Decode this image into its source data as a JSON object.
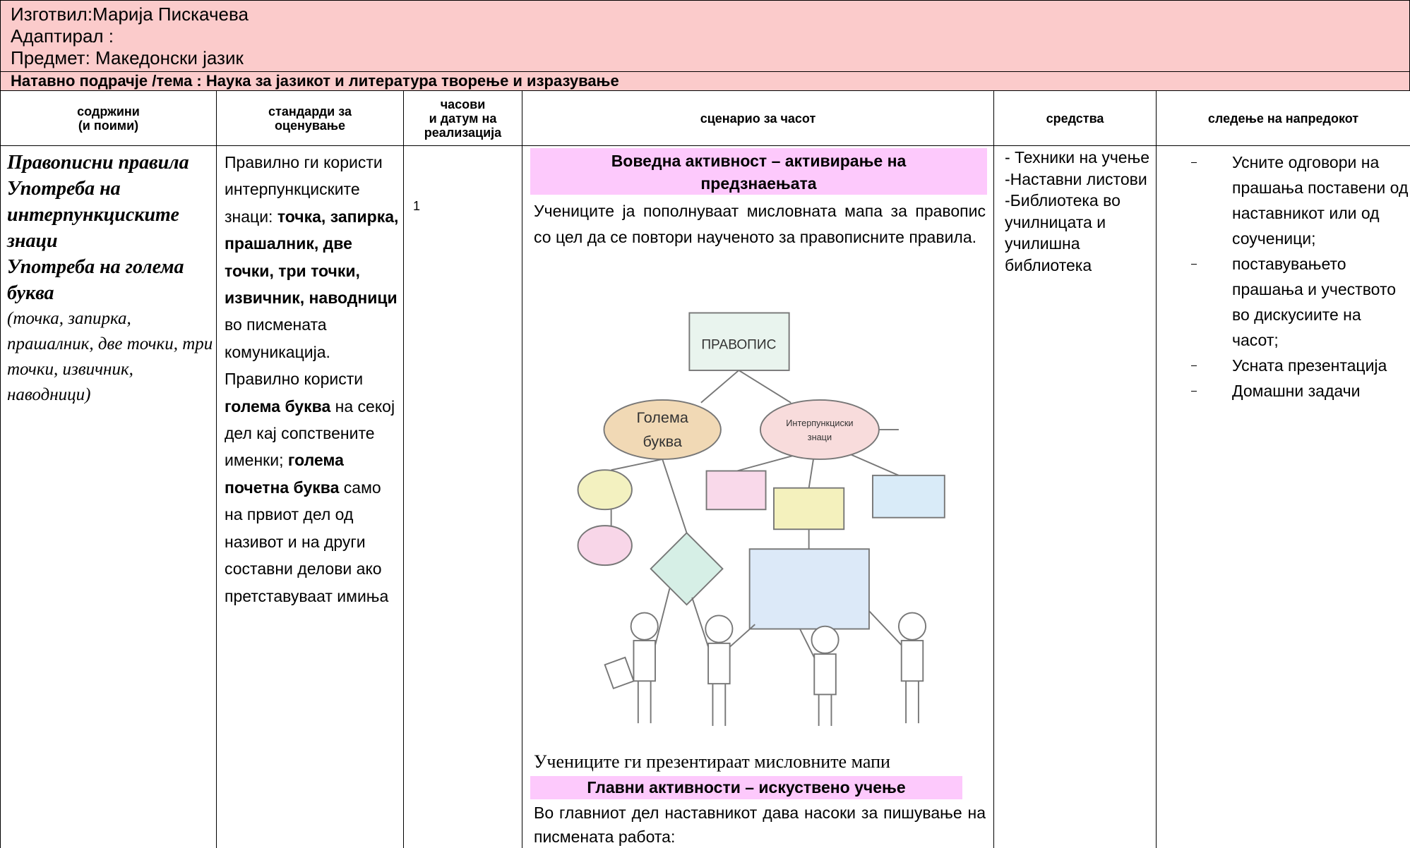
{
  "header": {
    "author": "Изготвил:Марија Пискачева",
    "adapted": "Адаптирал :",
    "subject": "Предмет: Македонски јазик",
    "topic": "Натавно подрачје /тема : Наука за јазикот и литература творење и изразување"
  },
  "table": {
    "columns": [
      [
        "содржини",
        "(и поими)"
      ],
      [
        "стандарди за",
        "оценување"
      ],
      [
        "часови",
        "и датум на",
        "реализација"
      ],
      [
        "сценарио за часот"
      ],
      [
        "средства"
      ],
      [
        "следење на напредокот"
      ]
    ],
    "contents": {
      "topics": [
        "Правописни правила",
        "Употреба на интерпункциските знаци",
        "Употреба на голема буква"
      ],
      "note": "(точка, запирка, прашалник, две точки, три точки, извичник, наводници)"
    },
    "standards": [
      {
        "text": "Правилно ги користи интерпункциските знаци: ",
        "bold": false
      },
      {
        "text": "точка, запирка, прашалник, две точки, три точки, извичник, наводници",
        "bold": true
      },
      {
        "text": " во писмената комуникација. Правилно користи ",
        "bold": false
      },
      {
        "text": "голема буква",
        "bold": true
      },
      {
        "text": " на секој дел кај сопствените именки; ",
        "bold": false
      },
      {
        "text": "голема почетна буква",
        "bold": true
      },
      {
        "text": " само на првиот дел од називот и на други составни делови ако претставуваат имиња",
        "bold": false
      }
    ],
    "hours": "1",
    "scenario": {
      "intro_heading": "Воведна активност – активирање на предзнаењата",
      "intro_text": "Учениците ја пополнуваат мисловната мапа за правопис со цел да се повтори наученото за правописните правила.",
      "mindmap": {
        "root": "ПРАВОПИС",
        "left": [
          "Голема",
          "буква"
        ],
        "right": [
          "Интерпункциски",
          "знаци"
        ]
      },
      "caption": "Учениците ги презентираат мисловните мапи",
      "main_heading": "Главни активности – искуствено учење",
      "main_text": "Во главниот дел наставникот дава насоки за пишување на писмената работа:"
    },
    "resources": [
      "- Техники на учење",
      "-Наставни листови",
      "-Библиотека во училницата и училишна библиотека"
    ],
    "progress": [
      "Усните одговори на прашања поставени од наставникот или од соученици;",
      "поставувањето прашања и учеството во дискусиите на часот;",
      "Усната презентација",
      "Домашни задачи"
    ]
  }
}
